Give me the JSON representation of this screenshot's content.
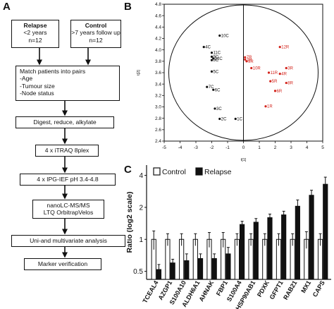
{
  "panels": {
    "a": "A",
    "b": "B",
    "c": "C"
  },
  "flow": {
    "relapse": {
      "title": "Relapse",
      "line1": "<2 years",
      "line2": "n=12"
    },
    "control": {
      "title": "Control",
      "line1": ">7 years follow up",
      "line2": "n=12"
    },
    "match": {
      "title": "Match patients into pairs",
      "items": [
        "-Age",
        "-Tumour size",
        "-Node status"
      ]
    },
    "digest": "Digest, reduce, alkylate",
    "itraq": "4 x iTRAQ 8plex",
    "ipg": "4 x IPG-IEF pH 3.4-4.8",
    "lcms": [
      "nanoLC-MS/MS",
      "LTQ OrbitrapVelos"
    ],
    "uni": "Uni-and multivariate analysis",
    "marker": "Marker verification"
  },
  "chart_data": [
    {
      "type": "scatter",
      "xlabel": "t[1]",
      "ylabel": "t[2]",
      "xlim": [
        -5,
        5
      ],
      "ylim": [
        2.4,
        4.8
      ],
      "xticks": [
        -5,
        -4,
        -3,
        -2,
        -1,
        0,
        1,
        2,
        3,
        4,
        5
      ],
      "yticks": [
        2.4,
        2.6,
        2.8,
        3.0,
        3.2,
        3.4,
        3.6,
        3.8,
        4.0,
        4.2,
        4.4,
        4.6,
        4.8
      ],
      "series": [
        {
          "color": "#111111",
          "points": [
            {
              "label": "10C",
              "x": -1.5,
              "y": 4.25
            },
            {
              "label": "4C",
              "x": -2.5,
              "y": 4.05
            },
            {
              "label": "11C",
              "x": -2.0,
              "y": 3.95
            },
            {
              "label": "9C",
              "x": -2.0,
              "y": 3.88
            },
            {
              "label": "12C",
              "x": -1.9,
              "y": 3.85
            },
            {
              "label": "8C",
              "x": -2.0,
              "y": 3.82
            },
            {
              "label": "5C",
              "x": -2.0,
              "y": 3.62
            },
            {
              "label": "7C",
              "x": -2.3,
              "y": 3.35
            },
            {
              "label": "6C",
              "x": -1.9,
              "y": 3.3
            },
            {
              "label": "3C",
              "x": -1.8,
              "y": 2.97
            },
            {
              "label": "2C",
              "x": -1.5,
              "y": 2.79
            },
            {
              "label": "1C",
              "x": -0.5,
              "y": 2.79
            }
          ]
        },
        {
          "color": "#d3241c",
          "points": [
            {
              "label": "12R",
              "x": 2.3,
              "y": 4.05
            },
            {
              "label": "7R",
              "x": 0.1,
              "y": 3.87
            },
            {
              "label": "2R",
              "x": 0.1,
              "y": 3.83
            },
            {
              "label": "9R",
              "x": 0.2,
              "y": 3.8
            },
            {
              "label": "10R",
              "x": 0.5,
              "y": 3.68
            },
            {
              "label": "3R",
              "x": 2.7,
              "y": 3.68
            },
            {
              "label": "11R",
              "x": 1.6,
              "y": 3.6
            },
            {
              "label": "4R",
              "x": 2.3,
              "y": 3.58
            },
            {
              "label": "5R",
              "x": 1.7,
              "y": 3.45
            },
            {
              "label": "6R",
              "x": 2.0,
              "y": 3.28
            },
            {
              "label": "8R",
              "x": 2.7,
              "y": 3.42
            },
            {
              "label": "1R",
              "x": 1.4,
              "y": 3.01
            }
          ]
        }
      ]
    },
    {
      "type": "bar",
      "legend": [
        "Control",
        "Relapse"
      ],
      "ylabel": "Ratio (log2 scale)",
      "yscale": "log2",
      "ylim": [
        0.42,
        5.0
      ],
      "yticks": [
        0.5,
        1,
        2,
        4
      ],
      "ytick_labels": [
        "0.5",
        "1",
        "2",
        "4"
      ],
      "categories": [
        "TCEAL4",
        "AZGP1",
        "S100A10",
        "ALDH6A1",
        "AHNAK",
        "FBP1",
        "S100A4",
        "HSP90AB1",
        "PDXK",
        "GFPT1",
        "RAB21",
        "MX1",
        "CAPS"
      ],
      "series": [
        {
          "name": "Control",
          "color": "#ffffff",
          "values": [
            1,
            1,
            1,
            1,
            1,
            1,
            1,
            1,
            1,
            1,
            1,
            1,
            1
          ],
          "errors": [
            0.2,
            0.13,
            0.13,
            0.13,
            0.16,
            0.16,
            0.13,
            0.13,
            0.13,
            0.13,
            0.13,
            0.18,
            0.13
          ]
        },
        {
          "name": "Relapse",
          "color": "#111111",
          "values": [
            0.52,
            0.6,
            0.63,
            0.66,
            0.66,
            0.73,
            1.38,
            1.45,
            1.6,
            1.7,
            2.05,
            2.6,
            3.3
          ],
          "errors": [
            0.06,
            0.05,
            0.1,
            0.07,
            0.07,
            0.11,
            0.1,
            0.12,
            0.13,
            0.14,
            0.3,
            0.3,
            0.55
          ]
        }
      ]
    }
  ]
}
